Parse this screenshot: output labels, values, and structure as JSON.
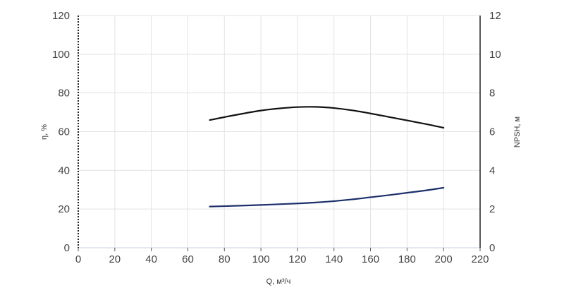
{
  "chart_data": {
    "type": "line",
    "xlabel": "Q, м³/ч",
    "ylabel_left": "η, %",
    "ylabel_right": "NPSH, м",
    "xlim": [
      0,
      220
    ],
    "ylim_left": [
      0,
      120
    ],
    "ylim_right": [
      0,
      12
    ],
    "x_ticks": [
      0,
      20,
      40,
      60,
      80,
      100,
      120,
      140,
      160,
      180,
      200,
      220
    ],
    "y_left_ticks": [
      0,
      20,
      40,
      60,
      80,
      100,
      120
    ],
    "y_right_ticks": [
      0,
      2,
      4,
      6,
      8,
      10,
      12
    ],
    "grid": true,
    "series": [
      {
        "axis": "left",
        "color": "#111111",
        "x": [
          72,
          80,
          90,
          100,
          110,
          120,
          130,
          140,
          150,
          160,
          170,
          180,
          190,
          200
        ],
        "y": [
          66.0,
          67.5,
          69.3,
          70.9,
          72.0,
          72.7,
          72.8,
          72.2,
          71.0,
          69.4,
          67.6,
          65.8,
          64.0,
          62.0
        ]
      },
      {
        "axis": "right",
        "color": "#1b2f6b",
        "x": [
          72,
          80,
          90,
          100,
          110,
          120,
          130,
          140,
          150,
          160,
          170,
          180,
          190,
          200
        ],
        "y": [
          2.13,
          2.15,
          2.18,
          2.21,
          2.25,
          2.29,
          2.34,
          2.41,
          2.5,
          2.61,
          2.72,
          2.84,
          2.96,
          3.1
        ]
      }
    ]
  }
}
